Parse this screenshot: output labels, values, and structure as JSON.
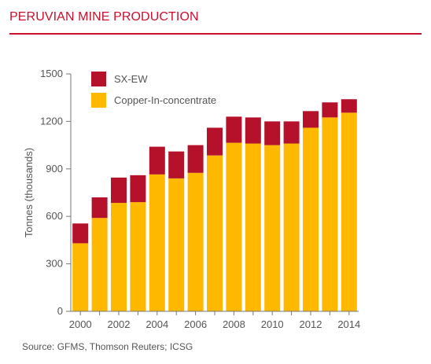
{
  "header": {
    "title": "PERUVIAN MINE PRODUCTION"
  },
  "footer": {
    "source": "Source: GFMS, Thomson Reuters; ICSG"
  },
  "colors": {
    "accent": "#c8102e",
    "sxew": "#b5112a",
    "concentrate": "#ffb800"
  },
  "chart_data": {
    "type": "bar",
    "stacked": true,
    "title": "PERUVIAN MINE PRODUCTION",
    "ylabel": "Tonnes (thousands)",
    "xlabel": "",
    "ylim": [
      0,
      1500
    ],
    "yticks": [
      0,
      300,
      600,
      900,
      1200,
      1500
    ],
    "xticks": [
      "2000",
      "2002",
      "2004",
      "2006",
      "2008",
      "2010",
      "2012",
      "2014"
    ],
    "categories": [
      "2000",
      "2001",
      "2002",
      "2003",
      "2004",
      "2005",
      "2006",
      "2007",
      "2008",
      "2009",
      "2010",
      "2011",
      "2012",
      "2013",
      "2014"
    ],
    "legend_position": "top-left",
    "series": [
      {
        "name": "Copper-In-concentrate",
        "color": "#ffb800",
        "values": [
          430,
          590,
          685,
          690,
          865,
          840,
          875,
          985,
          1065,
          1060,
          1050,
          1060,
          1160,
          1225,
          1255
        ]
      },
      {
        "name": "SX-EW",
        "color": "#b5112a",
        "values": [
          125,
          130,
          160,
          170,
          175,
          170,
          175,
          175,
          165,
          165,
          150,
          140,
          105,
          95,
          85
        ]
      }
    ],
    "legend": [
      "SX-EW",
      "Copper-In-concentrate"
    ]
  }
}
